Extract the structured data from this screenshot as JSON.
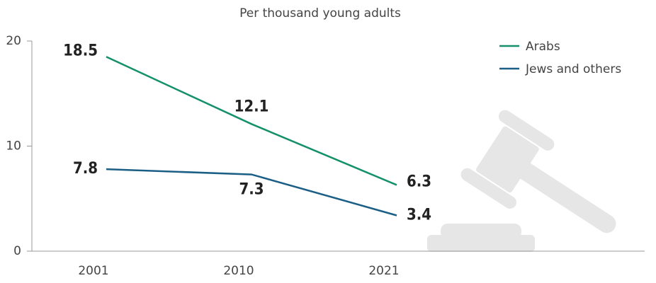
{
  "chart_data": {
    "type": "line",
    "subtitle": "Per thousand young adults",
    "categories": [
      "2001",
      "2010",
      "2021"
    ],
    "series": [
      {
        "name": "Arabs",
        "color": "#14906a",
        "values": [
          18.5,
          12.1,
          6.3
        ]
      },
      {
        "name": "Jews and others",
        "color": "#1b5e86",
        "values": [
          7.8,
          7.3,
          3.4
        ]
      }
    ],
    "ylim": [
      0,
      20
    ],
    "yticks": [
      0,
      10,
      20
    ],
    "legend": "top-right"
  }
}
